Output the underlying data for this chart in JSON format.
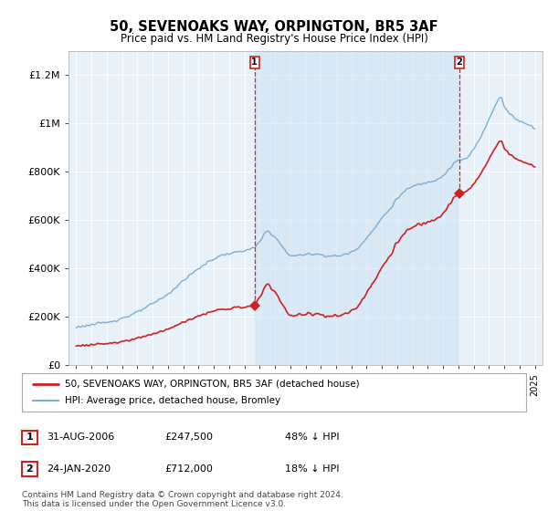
{
  "title": "50, SEVENOAKS WAY, ORPINGTON, BR5 3AF",
  "subtitle": "Price paid vs. HM Land Registry's House Price Index (HPI)",
  "ylabel_ticks": [
    "£0",
    "£200K",
    "£400K",
    "£600K",
    "£800K",
    "£1M",
    "£1.2M"
  ],
  "ytick_vals": [
    0,
    200000,
    400000,
    600000,
    800000,
    1000000,
    1200000
  ],
  "ylim": [
    0,
    1300000
  ],
  "xlim_start": 1994.5,
  "xlim_end": 2025.5,
  "hpi_color": "#7bafd4",
  "price_color": "#cc2222",
  "background_plot": "#e8f0f8",
  "shade_color": "#d0e4f4",
  "transaction1_x": 2006.667,
  "transaction1_y": 247500,
  "transaction2_x": 2020.07,
  "transaction2_y": 712000,
  "legend_line1": "50, SEVENOAKS WAY, ORPINGTON, BR5 3AF (detached house)",
  "legend_line2": "HPI: Average price, detached house, Bromley",
  "table_row1": [
    "1",
    "31-AUG-2006",
    "£247,500",
    "48% ↓ HPI"
  ],
  "table_row2": [
    "2",
    "24-JAN-2020",
    "£712,000",
    "18% ↓ HPI"
  ],
  "footer": "Contains HM Land Registry data © Crown copyright and database right 2024.\nThis data is licensed under the Open Government Licence v3.0."
}
